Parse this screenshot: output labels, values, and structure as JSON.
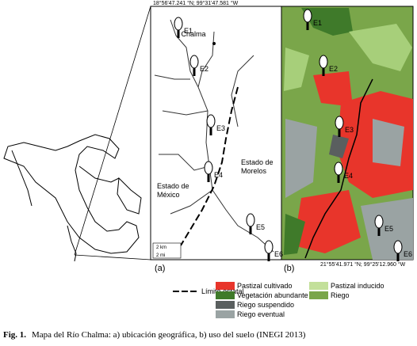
{
  "map": {
    "coord_top": "18°56'47.241 °N; 99°31'47.581 °W",
    "coord_bottom": "21°55'41.971 °N; 99°25'12.960 °W",
    "stations": [
      "E1",
      "E2",
      "E3",
      "E4",
      "E5",
      "E6"
    ],
    "places": [
      "Chalma",
      "Estado de México",
      "Estado de Morelos"
    ],
    "scale": [
      "2 km",
      "2 mi"
    ],
    "panels": [
      "(a)",
      "(b)"
    ]
  },
  "legend": {
    "boundary": "Límite estatal",
    "items": [
      "Pastizal cultivado",
      "Vegetación abundante",
      "Riego suspendido",
      "Riego eventual",
      "Pastizal inducido",
      "Riego"
    ]
  },
  "caption": {
    "label": "Fig. 1.",
    "text": "Mapa del Río Chalma: a) ubicación geográfica, b) uso del suelo (INEGI 2013)"
  }
}
